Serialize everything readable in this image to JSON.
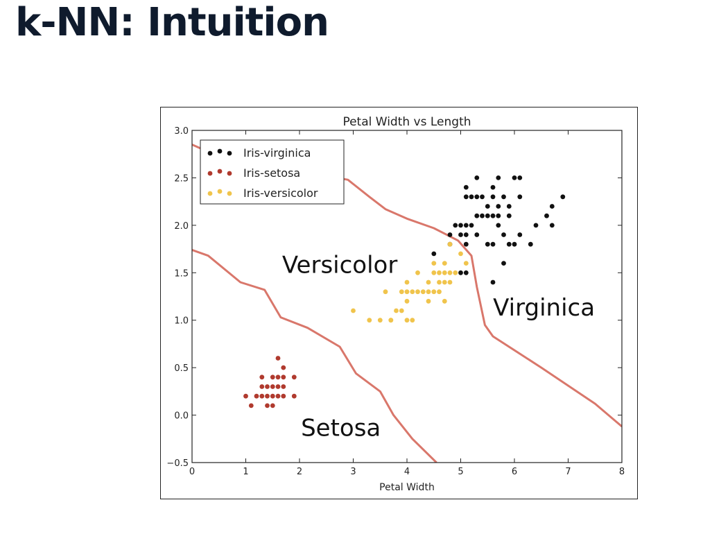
{
  "slide": {
    "title": "k-NN: Intuition"
  },
  "colors": {
    "virginica": "#111111",
    "setosa": "#b03a2e",
    "versicolor": "#f0c44c",
    "boundary": "#d9776b"
  },
  "chart_data": {
    "type": "scatter",
    "title": "Petal Width vs Length",
    "xlabel": "Petal Width",
    "ylabel": "",
    "xlim": [
      0,
      8
    ],
    "ylim": [
      -0.5,
      3.0
    ],
    "xticks": [
      0,
      1,
      2,
      3,
      4,
      5,
      6,
      7,
      8
    ],
    "yticks": [
      -0.5,
      0.0,
      0.5,
      1.0,
      1.5,
      2.0,
      2.5,
      3.0
    ],
    "ytick_labels": [
      "−0.5",
      "0.0",
      "0.5",
      "1.0",
      "1.5",
      "2.0",
      "2.5",
      "3.0"
    ],
    "legend_position": "top-left",
    "series": [
      {
        "name": "Iris-virginica",
        "color": "#111111",
        "points": [
          [
            5.1,
            2.4
          ],
          [
            5.3,
            2.5
          ],
          [
            5.6,
            2.4
          ],
          [
            5.7,
            2.5
          ],
          [
            6.0,
            2.5
          ],
          [
            6.1,
            2.5
          ],
          [
            5.1,
            2.3
          ],
          [
            5.2,
            2.3
          ],
          [
            5.3,
            2.3
          ],
          [
            5.4,
            2.3
          ],
          [
            5.6,
            2.3
          ],
          [
            5.8,
            2.3
          ],
          [
            6.1,
            2.3
          ],
          [
            6.9,
            2.3
          ],
          [
            5.5,
            2.2
          ],
          [
            5.7,
            2.2
          ],
          [
            5.9,
            2.2
          ],
          [
            6.7,
            2.2
          ],
          [
            5.3,
            2.1
          ],
          [
            5.4,
            2.1
          ],
          [
            5.5,
            2.1
          ],
          [
            5.6,
            2.1
          ],
          [
            5.7,
            2.1
          ],
          [
            5.9,
            2.1
          ],
          [
            6.6,
            2.1
          ],
          [
            4.9,
            2.0
          ],
          [
            5.0,
            2.0
          ],
          [
            5.1,
            2.0
          ],
          [
            5.2,
            2.0
          ],
          [
            5.7,
            2.0
          ],
          [
            6.4,
            2.0
          ],
          [
            6.7,
            2.0
          ],
          [
            4.8,
            1.9
          ],
          [
            5.0,
            1.9
          ],
          [
            5.1,
            1.9
          ],
          [
            5.3,
            1.9
          ],
          [
            5.8,
            1.9
          ],
          [
            6.1,
            1.9
          ],
          [
            4.8,
            1.8
          ],
          [
            5.1,
            1.8
          ],
          [
            5.5,
            1.8
          ],
          [
            5.6,
            1.8
          ],
          [
            5.9,
            1.8
          ],
          [
            6.0,
            1.8
          ],
          [
            6.3,
            1.8
          ],
          [
            4.5,
            1.7
          ],
          [
            5.8,
            1.6
          ],
          [
            5.0,
            1.5
          ],
          [
            5.1,
            1.5
          ],
          [
            5.6,
            1.4
          ]
        ]
      },
      {
        "name": "Iris-setosa",
        "color": "#b03a2e",
        "points": [
          [
            1.6,
            0.6
          ],
          [
            1.7,
            0.5
          ],
          [
            1.3,
            0.4
          ],
          [
            1.5,
            0.4
          ],
          [
            1.6,
            0.4
          ],
          [
            1.7,
            0.4
          ],
          [
            1.9,
            0.4
          ],
          [
            1.3,
            0.3
          ],
          [
            1.4,
            0.3
          ],
          [
            1.5,
            0.3
          ],
          [
            1.6,
            0.3
          ],
          [
            1.7,
            0.3
          ],
          [
            1.2,
            0.2
          ],
          [
            1.3,
            0.2
          ],
          [
            1.4,
            0.2
          ],
          [
            1.5,
            0.2
          ],
          [
            1.6,
            0.2
          ],
          [
            1.7,
            0.2
          ],
          [
            1.9,
            0.2
          ],
          [
            1.0,
            0.2
          ],
          [
            1.1,
            0.1
          ],
          [
            1.4,
            0.1
          ],
          [
            1.5,
            0.1
          ]
        ]
      },
      {
        "name": "Iris-versicolor",
        "color": "#f0c44c",
        "points": [
          [
            4.8,
            1.8
          ],
          [
            5.0,
            1.7
          ],
          [
            4.5,
            1.6
          ],
          [
            4.7,
            1.6
          ],
          [
            5.1,
            1.6
          ],
          [
            4.2,
            1.5
          ],
          [
            4.5,
            1.5
          ],
          [
            4.6,
            1.5
          ],
          [
            4.7,
            1.5
          ],
          [
            4.8,
            1.5
          ],
          [
            4.9,
            1.5
          ],
          [
            4.0,
            1.4
          ],
          [
            4.4,
            1.4
          ],
          [
            4.6,
            1.4
          ],
          [
            4.7,
            1.4
          ],
          [
            4.8,
            1.4
          ],
          [
            3.9,
            1.3
          ],
          [
            4.0,
            1.3
          ],
          [
            4.1,
            1.3
          ],
          [
            4.2,
            1.3
          ],
          [
            4.3,
            1.3
          ],
          [
            4.4,
            1.3
          ],
          [
            4.5,
            1.3
          ],
          [
            4.6,
            1.3
          ],
          [
            3.6,
            1.3
          ],
          [
            4.4,
            1.2
          ],
          [
            4.7,
            1.2
          ],
          [
            4.0,
            1.2
          ],
          [
            3.7,
            1.0
          ],
          [
            3.8,
            1.1
          ],
          [
            3.9,
            1.1
          ],
          [
            3.0,
            1.1
          ],
          [
            3.3,
            1.0
          ],
          [
            3.5,
            1.0
          ],
          [
            3.7,
            1.0
          ],
          [
            4.0,
            1.0
          ],
          [
            4.1,
            1.0
          ]
        ]
      }
    ],
    "boundaries": [
      [
        [
          0,
          2.85
        ],
        [
          0.4,
          2.75
        ],
        [
          1.0,
          2.62
        ],
        [
          1.5,
          2.62
        ],
        [
          2.0,
          2.55
        ],
        [
          2.5,
          2.52
        ],
        [
          2.9,
          2.48
        ],
        [
          3.3,
          2.3
        ],
        [
          3.6,
          2.17
        ],
        [
          4.0,
          2.07
        ],
        [
          4.5,
          1.97
        ],
        [
          4.95,
          1.84
        ],
        [
          5.2,
          1.68
        ],
        [
          5.3,
          1.35
        ],
        [
          5.45,
          0.95
        ],
        [
          5.6,
          0.83
        ],
        [
          6.5,
          0.5
        ],
        [
          7.5,
          0.12
        ],
        [
          8.0,
          -0.12
        ]
      ],
      [
        [
          0,
          1.74
        ],
        [
          0.3,
          1.68
        ],
        [
          0.9,
          1.4
        ],
        [
          1.35,
          1.32
        ],
        [
          1.65,
          1.03
        ],
        [
          2.15,
          0.92
        ],
        [
          2.75,
          0.72
        ],
        [
          3.05,
          0.44
        ],
        [
          3.5,
          0.25
        ],
        [
          3.75,
          0.0
        ],
        [
          4.1,
          -0.25
        ],
        [
          4.55,
          -0.5
        ]
      ]
    ],
    "annotations": [
      {
        "text": "Versicolor",
        "x": 2.75,
        "y": 1.5
      },
      {
        "text": "Virginica",
        "x": 6.55,
        "y": 1.05
      },
      {
        "text": "Setosa",
        "x": 2.77,
        "y": -0.22
      }
    ]
  }
}
